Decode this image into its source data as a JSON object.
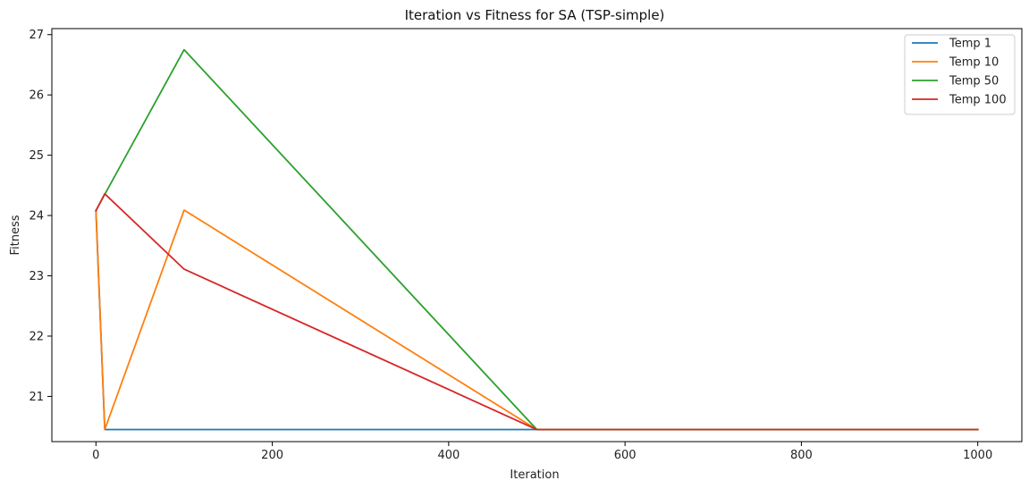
{
  "chart_data": {
    "type": "line",
    "title": "Iteration vs Fitness for SA (TSP-simple)",
    "xlabel": "Iteration",
    "ylabel": "Fitness",
    "xlim": [
      -50,
      1050
    ],
    "ylim": [
      20.25,
      27.1
    ],
    "xticks": [
      0,
      200,
      400,
      600,
      800,
      1000
    ],
    "yticks": [
      21,
      22,
      23,
      24,
      25,
      26,
      27
    ],
    "grid": false,
    "legend_position": "top-right",
    "series": [
      {
        "name": "Temp 1",
        "color": "#1f77b4",
        "x": [
          0,
          10,
          100,
          500,
          1000
        ],
        "y": [
          24.08,
          20.45,
          20.45,
          20.45,
          20.45
        ]
      },
      {
        "name": "Temp 10",
        "color": "#ff7f0e",
        "x": [
          0,
          10,
          100,
          500,
          1000
        ],
        "y": [
          24.08,
          20.45,
          24.09,
          20.45,
          20.45
        ]
      },
      {
        "name": "Temp 50",
        "color": "#2ca02c",
        "x": [
          0,
          10,
          100,
          500,
          1000
        ],
        "y": [
          24.08,
          24.35,
          26.75,
          20.45,
          20.45
        ]
      },
      {
        "name": "Temp 100",
        "color": "#d62728",
        "x": [
          0,
          10,
          100,
          500,
          1000
        ],
        "y": [
          24.08,
          24.36,
          23.11,
          20.45,
          20.45
        ]
      }
    ]
  }
}
